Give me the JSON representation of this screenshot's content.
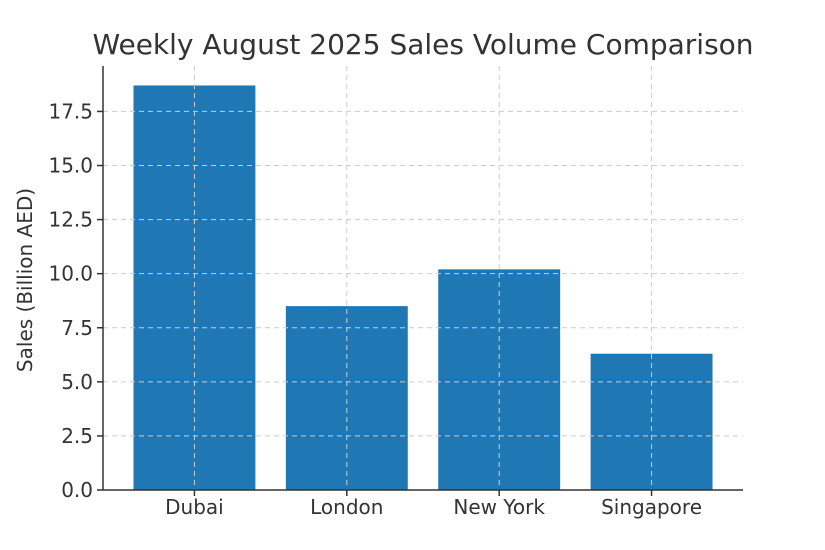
{
  "chart_data": {
    "type": "bar",
    "title": "Weekly August 2025 Sales Volume Comparison",
    "xlabel": "",
    "ylabel": "Sales (Billion AED)",
    "categories": [
      "Dubai",
      "London",
      "New York",
      "Singapore"
    ],
    "values": [
      18.7,
      8.5,
      10.2,
      6.3
    ],
    "ylim": [
      0,
      19.6
    ],
    "yticks": [
      0.0,
      2.5,
      5.0,
      7.5,
      10.0,
      12.5,
      15.0,
      17.5
    ],
    "ytick_labels": [
      "0.0",
      "2.5",
      "5.0",
      "7.5",
      "10.0",
      "12.5",
      "15.0",
      "17.5"
    ],
    "grid": true,
    "bar_color": "#1f77b4"
  }
}
